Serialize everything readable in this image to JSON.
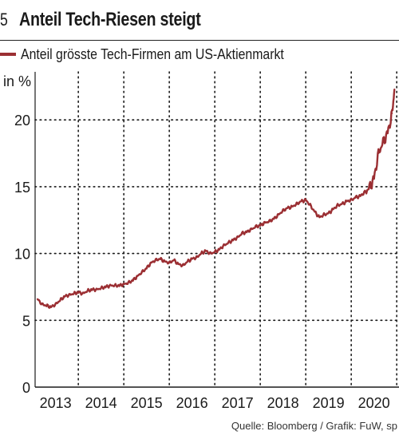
{
  "header": {
    "number": "5",
    "title": "Anteil Tech-Riesen steigt"
  },
  "source": "Quelle: Bloomberg / Grafik: FuW, sp",
  "colors": {
    "line": "#9b2f33",
    "grid": "#1a1a1a"
  },
  "chart_data": {
    "type": "line",
    "title": "Anteil Tech-Riesen steigt",
    "ylabel": "in %",
    "xlabel": "",
    "ylim": [
      0,
      23
    ],
    "xlim": [
      2012.55,
      2020.55
    ],
    "yticks": [
      0,
      5,
      10,
      15,
      20
    ],
    "xticks": [
      2013,
      2014,
      2015,
      2016,
      2017,
      2018,
      2019,
      2020
    ],
    "xgrid": [
      2013.5,
      2014.5,
      2015.5,
      2016.5,
      2017.5,
      2018.5,
      2019.5,
      2020.5
    ],
    "grid": true,
    "legend_position": "top-left",
    "series": [
      {
        "name": "Anteil grösste Tech-Firmen am US-Aktienmarkt",
        "x": [
          2012.6,
          2012.7,
          2012.8,
          2012.9,
          2013.0,
          2013.1,
          2013.2,
          2013.3,
          2013.4,
          2013.5,
          2013.6,
          2013.7,
          2013.8,
          2013.9,
          2014.0,
          2014.1,
          2014.2,
          2014.3,
          2014.4,
          2014.5,
          2014.6,
          2014.7,
          2014.8,
          2014.9,
          2015.0,
          2015.1,
          2015.2,
          2015.3,
          2015.4,
          2015.5,
          2015.6,
          2015.7,
          2015.8,
          2015.9,
          2016.0,
          2016.1,
          2016.2,
          2016.3,
          2016.4,
          2016.5,
          2016.6,
          2016.7,
          2016.8,
          2016.9,
          2017.0,
          2017.1,
          2017.2,
          2017.3,
          2017.4,
          2017.5,
          2017.6,
          2017.7,
          2017.8,
          2017.9,
          2018.0,
          2018.1,
          2018.2,
          2018.3,
          2018.4,
          2018.5,
          2018.6,
          2018.7,
          2018.8,
          2018.9,
          2019.0,
          2019.1,
          2019.2,
          2019.3,
          2019.4,
          2019.5,
          2019.6,
          2019.7,
          2019.8,
          2019.9,
          2020.0,
          2020.1,
          2020.2,
          2020.3,
          2020.4,
          2020.45
        ],
        "values": [
          6.6,
          6.2,
          6.1,
          6.0,
          6.2,
          6.5,
          6.8,
          6.9,
          7.0,
          7.1,
          7.0,
          7.2,
          7.3,
          7.3,
          7.4,
          7.5,
          7.6,
          7.6,
          7.6,
          7.7,
          7.8,
          8.0,
          8.3,
          8.6,
          8.9,
          9.3,
          9.5,
          9.6,
          9.4,
          9.3,
          9.5,
          9.2,
          9.1,
          9.4,
          9.6,
          9.7,
          10.0,
          10.2,
          10.0,
          10.1,
          10.3,
          10.6,
          10.8,
          11.0,
          11.2,
          11.5,
          11.6,
          11.8,
          12.0,
          12.1,
          12.3,
          12.4,
          12.6,
          12.9,
          13.2,
          13.4,
          13.5,
          13.7,
          13.9,
          14.0,
          13.6,
          13.1,
          12.7,
          12.9,
          13.0,
          13.3,
          13.6,
          13.7,
          13.9,
          14.0,
          14.2,
          14.3,
          14.6,
          14.9,
          15.6,
          17.5,
          18.3,
          19.0,
          20.5,
          22.3
        ]
      }
    ]
  }
}
